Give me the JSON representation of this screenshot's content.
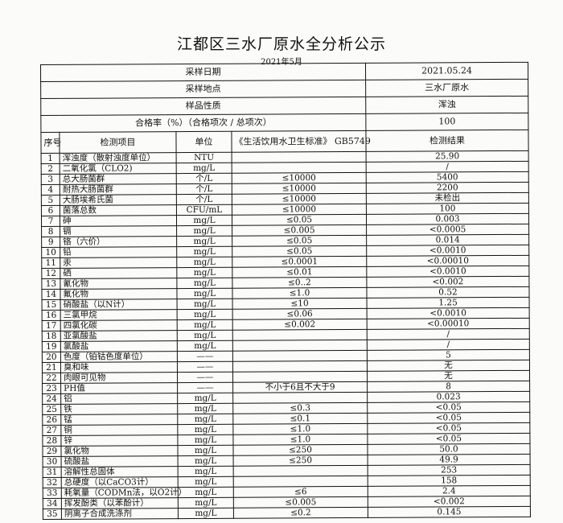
{
  "title": "江都区三水厂原水全分析公示",
  "subtitle": "2021年5月",
  "meta": [
    {
      "label": "采样日期",
      "value": "2021.05.24"
    },
    {
      "label": "采样地点",
      "value": "三水厂原水"
    },
    {
      "label": "样品性质",
      "value": "浑浊"
    },
    {
      "label": "合格率（%）（合格项次 / 总项次）",
      "value": "100"
    }
  ],
  "headers": {
    "no": "序号",
    "item": "检测项目",
    "unit": "单位",
    "standard": "《生活饮用水卫生标准》 GB5749",
    "result": "检测结果"
  },
  "rows": [
    {
      "no": "1",
      "item": "浑浊度（散射浊度单位）",
      "unit": "NTU",
      "std": "",
      "result": "25.90"
    },
    {
      "no": "2",
      "item": "二氧化氯（CLO2)",
      "unit": "mg/L",
      "std": "",
      "result": "/"
    },
    {
      "no": "3",
      "item": "总大肠菌群",
      "unit": "个/L",
      "std": "≤10000",
      "result": "5400"
    },
    {
      "no": "4",
      "item": "耐热大肠菌群",
      "unit": "个/L",
      "std": "≤10000",
      "result": "2200"
    },
    {
      "no": "5",
      "item": "大肠埃希氏菌",
      "unit": "个/L",
      "std": "≤10000",
      "result": "未检出"
    },
    {
      "no": "6",
      "item": "菌落总数",
      "unit": "CFU/mL",
      "std": "≤10000",
      "result": "100"
    },
    {
      "no": "7",
      "item": "砷",
      "unit": "mg/L",
      "std": "≤0.05",
      "result": "0.003"
    },
    {
      "no": "8",
      "item": "镉",
      "unit": "mg/L",
      "std": "≤0.005",
      "result": "<0.0005"
    },
    {
      "no": "9",
      "item": "铬（六价）",
      "unit": "mg/L",
      "std": "≤0.05",
      "result": "0.014"
    },
    {
      "no": "10",
      "item": "铅",
      "unit": "mg/L",
      "std": "≤0.05",
      "result": "<0.0010"
    },
    {
      "no": "11",
      "item": "汞",
      "unit": "mg/L",
      "std": "≤0.0001",
      "result": "<0.00010"
    },
    {
      "no": "12",
      "item": "硒",
      "unit": "mg/L",
      "std": "≤0.01",
      "result": "<0.0010"
    },
    {
      "no": "13",
      "item": "氰化物",
      "unit": "mg/L",
      "std": "≤0..2",
      "result": "<0.002"
    },
    {
      "no": "14",
      "item": "氟化物",
      "unit": "mg/L",
      "std": "≤1.0",
      "result": "0.52"
    },
    {
      "no": "15",
      "item": "硝酸盐（以N计）",
      "unit": "mg/L",
      "std": "≤10",
      "result": "1.25"
    },
    {
      "no": "16",
      "item": "三氯甲烷",
      "unit": "mg/L",
      "std": "≤0.06",
      "result": "<0.0010"
    },
    {
      "no": "17",
      "item": "四氯化碳",
      "unit": "mg/L",
      "std": "≤0.002",
      "result": "<0.00010"
    },
    {
      "no": "18",
      "item": "亚氯酸盐",
      "unit": "mg/L",
      "std": "",
      "result": "/"
    },
    {
      "no": "19",
      "item": "氯酸盐",
      "unit": "mg/L",
      "std": "",
      "result": "/"
    },
    {
      "no": "20",
      "item": "色度（铂钴色度单位）",
      "unit": "——",
      "std": "",
      "result": "5"
    },
    {
      "no": "21",
      "item": "臭和味",
      "unit": "——",
      "std": "",
      "result": "无"
    },
    {
      "no": "22",
      "item": "肉眼可见物",
      "unit": "——",
      "std": "",
      "result": "无"
    },
    {
      "no": "23",
      "item": "PH值",
      "unit": "——",
      "std": "不小于6且不大于9",
      "result": "8"
    },
    {
      "no": "24",
      "item": "铝",
      "unit": "mg/L",
      "std": "",
      "result": "0.023"
    },
    {
      "no": "25",
      "item": "铁",
      "unit": "mg/L",
      "std": "≤0.3",
      "result": "<0.05"
    },
    {
      "no": "26",
      "item": "锰",
      "unit": "mg/L",
      "std": "≤0.1",
      "result": "<0.05"
    },
    {
      "no": "27",
      "item": "铜",
      "unit": "mg/L",
      "std": "≤1.0",
      "result": "<0.05"
    },
    {
      "no": "28",
      "item": "锌",
      "unit": "mg/L",
      "std": "≤1.0",
      "result": "<0.05"
    },
    {
      "no": "29",
      "item": "氯化物",
      "unit": "mg/L",
      "std": "≤250",
      "result": "50.0"
    },
    {
      "no": "30",
      "item": "硫酸盐",
      "unit": "mg/L",
      "std": "≤250",
      "result": "49.9"
    },
    {
      "no": "31",
      "item": "溶解性总固体",
      "unit": "mg/L",
      "std": "",
      "result": "253"
    },
    {
      "no": "32",
      "item": "总硬度（以CaCO3计）",
      "unit": "mg/L",
      "std": "",
      "result": "158"
    },
    {
      "no": "33",
      "item": "耗氧量（CODMn法，以O2计）",
      "unit": "mg/L",
      "std": "≤6",
      "result": "2.4"
    },
    {
      "no": "34",
      "item": "挥发酚类（以苯酚计）",
      "unit": "mg/L",
      "std": "≤0.005",
      "result": "<0.002"
    },
    {
      "no": "35",
      "item": "阴离子合成洗涤剂",
      "unit": "mg/L",
      "std": "≤0.2",
      "result": "0.145"
    }
  ]
}
